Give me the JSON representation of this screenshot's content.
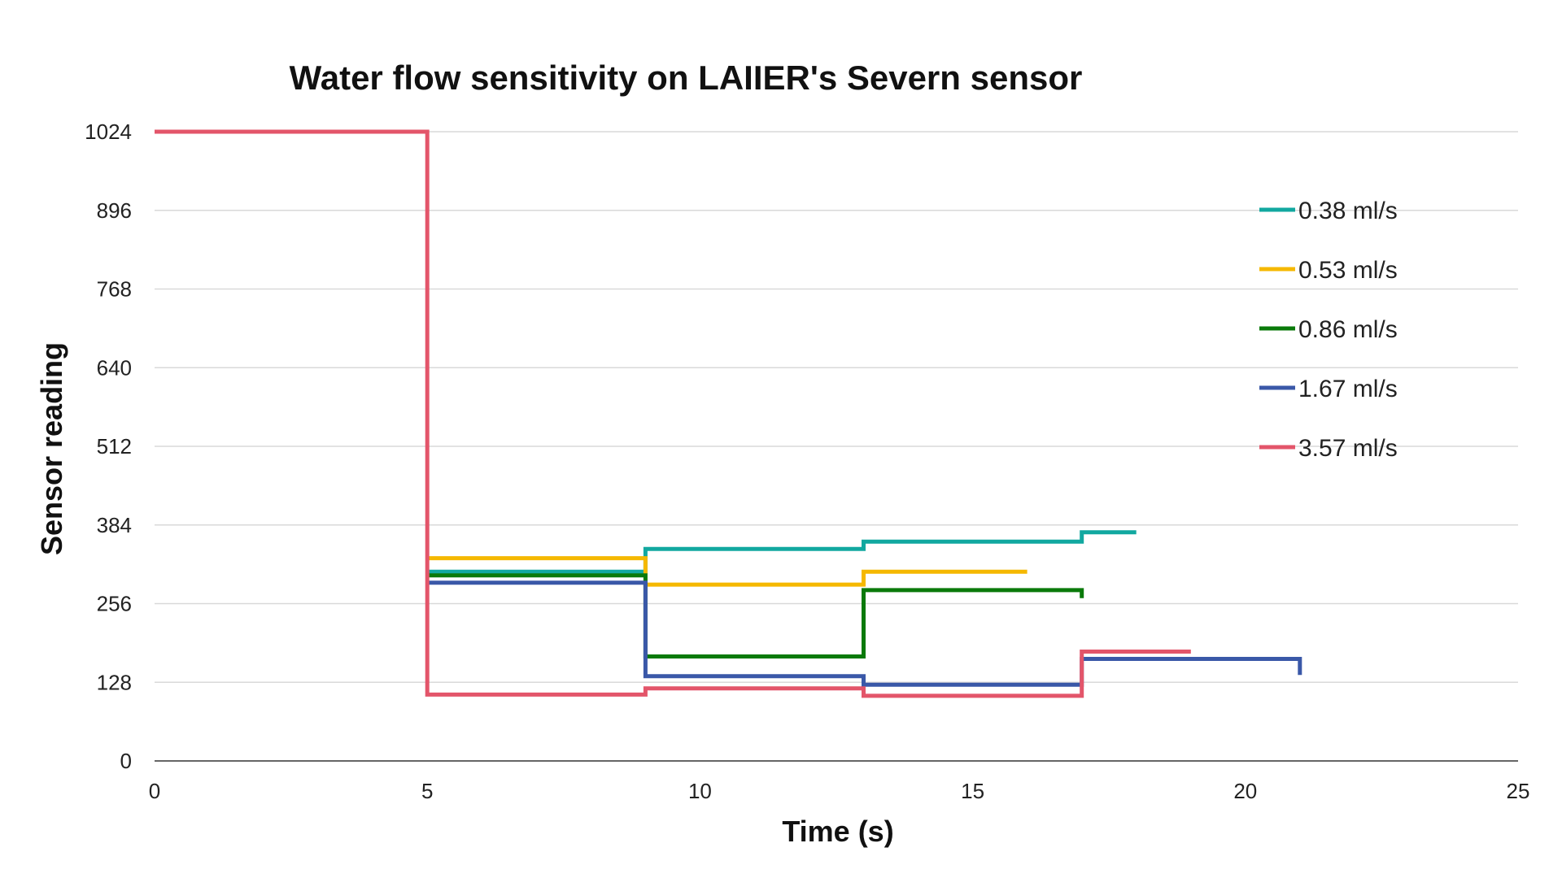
{
  "chart_data": {
    "type": "line",
    "step": true,
    "title": "Water flow sensitivity on LAIIER's Severn sensor",
    "xlabel": "Time (s)",
    "ylabel": "Sensor reading",
    "xlim": [
      0,
      25
    ],
    "ylim": [
      0,
      1024
    ],
    "xticks": [
      0,
      5,
      10,
      15,
      20,
      25
    ],
    "yticks": [
      0,
      128,
      256,
      384,
      512,
      640,
      768,
      896,
      1024
    ],
    "grid": true,
    "legend_position": "right",
    "series": [
      {
        "name": "0.38 ml/s",
        "color": "#12a8a0",
        "points": [
          [
            5,
            308
          ],
          [
            9,
            308
          ],
          [
            9,
            345
          ],
          [
            13,
            345
          ],
          [
            13,
            357
          ],
          [
            17,
            357
          ],
          [
            17,
            372
          ],
          [
            18,
            372
          ]
        ]
      },
      {
        "name": "0.53 ml/s",
        "color": "#f5b800",
        "points": [
          [
            5,
            330
          ],
          [
            9,
            330
          ],
          [
            9,
            287
          ],
          [
            13,
            287
          ],
          [
            13,
            308
          ],
          [
            16,
            308
          ]
        ]
      },
      {
        "name": "0.86 ml/s",
        "color": "#0a7a0a",
        "points": [
          [
            5,
            302
          ],
          [
            9,
            302
          ],
          [
            9,
            170
          ],
          [
            13,
            170
          ],
          [
            13,
            278
          ],
          [
            17,
            278
          ],
          [
            17,
            265
          ]
        ]
      },
      {
        "name": "1.67 ml/s",
        "color": "#3a58a8",
        "points": [
          [
            5,
            290
          ],
          [
            9,
            290
          ],
          [
            9,
            138
          ],
          [
            13,
            138
          ],
          [
            13,
            124
          ],
          [
            17,
            124
          ],
          [
            17,
            166
          ],
          [
            21,
            166
          ],
          [
            21,
            140
          ]
        ]
      },
      {
        "name": "3.57 ml/s",
        "color": "#e3556a",
        "points": [
          [
            0,
            1024
          ],
          [
            5,
            1024
          ],
          [
            5,
            108
          ],
          [
            9,
            108
          ],
          [
            9,
            118
          ],
          [
            13,
            118
          ],
          [
            13,
            106
          ],
          [
            17,
            106
          ],
          [
            17,
            178
          ],
          [
            19,
            178
          ]
        ]
      }
    ]
  }
}
